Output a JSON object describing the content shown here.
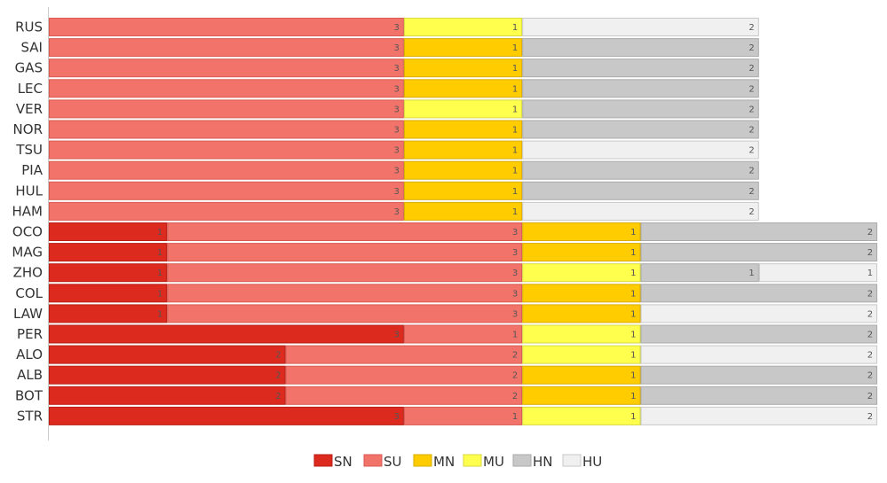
{
  "chart_data": {
    "type": "bar",
    "orientation": "horizontal",
    "stacked": true,
    "title": "",
    "xlabel": "",
    "ylabel": "",
    "xlim": [
      0,
      7
    ],
    "grid": false,
    "legend_position": "bottom",
    "legend": [
      {
        "key": "SN",
        "label": "SN",
        "color": "#dd2a1f"
      },
      {
        "key": "SU",
        "label": "SU",
        "color": "#f2736a"
      },
      {
        "key": "MN",
        "label": "MN",
        "color": "#ffcc00"
      },
      {
        "key": "MU",
        "label": "MU",
        "color": "#ffff4d"
      },
      {
        "key": "HN",
        "label": "HN",
        "color": "#c8c8c8"
      },
      {
        "key": "HU",
        "label": "HU",
        "color": "#f0f0f0"
      }
    ],
    "rows": [
      {
        "driver": "RUS",
        "segments": [
          [
            "SU",
            3
          ],
          [
            "MU",
            1
          ],
          [
            "HU",
            2
          ]
        ]
      },
      {
        "driver": "SAI",
        "segments": [
          [
            "SU",
            3
          ],
          [
            "MN",
            1
          ],
          [
            "HN",
            2
          ]
        ]
      },
      {
        "driver": "GAS",
        "segments": [
          [
            "SU",
            3
          ],
          [
            "MN",
            1
          ],
          [
            "HN",
            2
          ]
        ]
      },
      {
        "driver": "LEC",
        "segments": [
          [
            "SU",
            3
          ],
          [
            "MN",
            1
          ],
          [
            "HN",
            2
          ]
        ]
      },
      {
        "driver": "VER",
        "segments": [
          [
            "SU",
            3
          ],
          [
            "MU",
            1
          ],
          [
            "HN",
            2
          ]
        ]
      },
      {
        "driver": "NOR",
        "segments": [
          [
            "SU",
            3
          ],
          [
            "MN",
            1
          ],
          [
            "HN",
            2
          ]
        ]
      },
      {
        "driver": "TSU",
        "segments": [
          [
            "SU",
            3
          ],
          [
            "MN",
            1
          ],
          [
            "HU",
            2
          ]
        ]
      },
      {
        "driver": "PIA",
        "segments": [
          [
            "SU",
            3
          ],
          [
            "MN",
            1
          ],
          [
            "HN",
            2
          ]
        ]
      },
      {
        "driver": "HUL",
        "segments": [
          [
            "SU",
            3
          ],
          [
            "MN",
            1
          ],
          [
            "HN",
            2
          ]
        ]
      },
      {
        "driver": "HAM",
        "segments": [
          [
            "SU",
            3
          ],
          [
            "MN",
            1
          ],
          [
            "HU",
            2
          ]
        ]
      },
      {
        "driver": "OCO",
        "segments": [
          [
            "SN",
            1
          ],
          [
            "SU",
            3
          ],
          [
            "MN",
            1
          ],
          [
            "HN",
            2
          ]
        ]
      },
      {
        "driver": "MAG",
        "segments": [
          [
            "SN",
            1
          ],
          [
            "SU",
            3
          ],
          [
            "MN",
            1
          ],
          [
            "HN",
            2
          ]
        ]
      },
      {
        "driver": "ZHO",
        "segments": [
          [
            "SN",
            1
          ],
          [
            "SU",
            3
          ],
          [
            "MU",
            1
          ],
          [
            "HN",
            1
          ],
          [
            "HU",
            1
          ]
        ]
      },
      {
        "driver": "COL",
        "segments": [
          [
            "SN",
            1
          ],
          [
            "SU",
            3
          ],
          [
            "MN",
            1
          ],
          [
            "HN",
            2
          ]
        ]
      },
      {
        "driver": "LAW",
        "segments": [
          [
            "SN",
            1
          ],
          [
            "SU",
            3
          ],
          [
            "MN",
            1
          ],
          [
            "HU",
            2
          ]
        ]
      },
      {
        "driver": "PER",
        "segments": [
          [
            "SN",
            3
          ],
          [
            "SU",
            1
          ],
          [
            "MU",
            1
          ],
          [
            "HN",
            2
          ]
        ]
      },
      {
        "driver": "ALO",
        "segments": [
          [
            "SN",
            2
          ],
          [
            "SU",
            2
          ],
          [
            "MU",
            1
          ],
          [
            "HU",
            2
          ]
        ]
      },
      {
        "driver": "ALB",
        "segments": [
          [
            "SN",
            2
          ],
          [
            "SU",
            2
          ],
          [
            "MN",
            1
          ],
          [
            "HN",
            2
          ]
        ]
      },
      {
        "driver": "BOT",
        "segments": [
          [
            "SN",
            2
          ],
          [
            "SU",
            2
          ],
          [
            "MN",
            1
          ],
          [
            "HN",
            2
          ]
        ]
      },
      {
        "driver": "STR",
        "segments": [
          [
            "SN",
            3
          ],
          [
            "SU",
            1
          ],
          [
            "MU",
            1
          ],
          [
            "HU",
            2
          ]
        ]
      }
    ]
  }
}
